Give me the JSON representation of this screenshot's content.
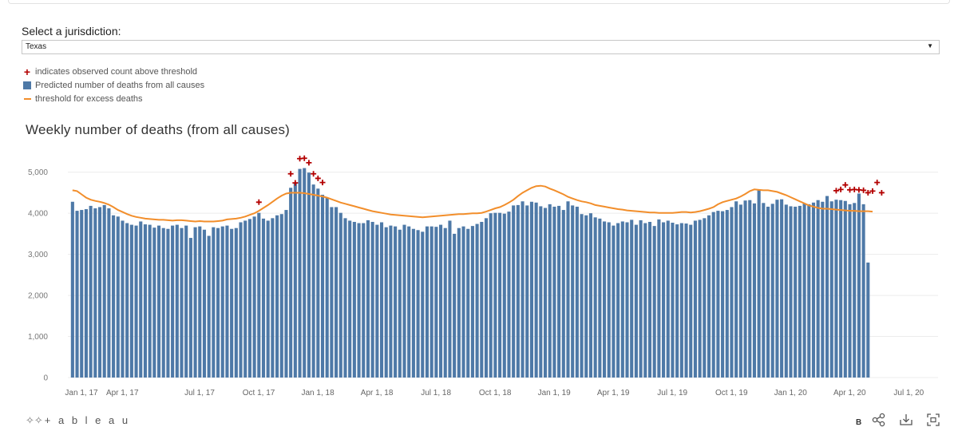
{
  "filter": {
    "label": "Select a jurisdiction:",
    "selected": "Texas",
    "caret_icon": "chevron-down-icon"
  },
  "legend": {
    "observed_above": "indicates observed count above threshold",
    "predicted": "Predicted number of deaths from all causes",
    "threshold": "threshold for excess deaths"
  },
  "footer": {
    "brand": "+ a b l e a u",
    "b_label": "B",
    "icons": [
      "share-icon",
      "download-icon",
      "fullscreen-icon"
    ]
  },
  "colors": {
    "bars": "#4e79a7",
    "threshold": "#f28e2b",
    "marker": "#b30000"
  },
  "chart_data": {
    "type": "bar",
    "title": "Weekly number of deaths (from all causes)",
    "xlabel": "",
    "ylabel": "",
    "ylim": [
      0,
      5500
    ],
    "yticks": [
      "0",
      "1,000",
      "2,000",
      "3,000",
      "4,000",
      "5,000"
    ],
    "ytick_values": [
      0,
      1000,
      2000,
      3000,
      4000,
      5000
    ],
    "x_start": "Jan 1, 17",
    "week_count": 183,
    "xticks": [
      {
        "label": "Jan 1, 17",
        "week": 0
      },
      {
        "label": "Apr 1, 17",
        "week": 9
      },
      {
        "label": "Jul 1, 17",
        "week": 26
      },
      {
        "label": "Oct 1, 17",
        "week": 39
      },
      {
        "label": "Jan 1, 18",
        "week": 52
      },
      {
        "label": "Apr 1, 18",
        "week": 65
      },
      {
        "label": "Jul 1, 18",
        "week": 78
      },
      {
        "label": "Oct 1, 18",
        "week": 91
      },
      {
        "label": "Jan 1, 19",
        "week": 104
      },
      {
        "label": "Apr 1, 19",
        "week": 117
      },
      {
        "label": "Jul 1, 19",
        "week": 130
      },
      {
        "label": "Oct 1, 19",
        "week": 143
      },
      {
        "label": "Jan 1, 20",
        "week": 156
      },
      {
        "label": "Apr 1, 20",
        "week": 169
      },
      {
        "label": "Jul 1, 20",
        "week": 182
      }
    ],
    "series": [
      {
        "name": "Predicted number of deaths from all causes",
        "type": "bar",
        "values": [
          4280,
          4060,
          4080,
          4100,
          4180,
          4120,
          4150,
          4200,
          4120,
          3950,
          3920,
          3820,
          3760,
          3720,
          3700,
          3800,
          3730,
          3720,
          3650,
          3700,
          3640,
          3620,
          3700,
          3720,
          3640,
          3700,
          3400,
          3660,
          3680,
          3600,
          3450,
          3660,
          3640,
          3680,
          3700,
          3620,
          3640,
          3780,
          3820,
          3860,
          3920,
          4010,
          3870,
          3820,
          3880,
          3950,
          3980,
          4080,
          4620,
          4740,
          5080,
          5100,
          4990,
          4700,
          4600,
          4450,
          4380,
          4150,
          4150,
          4010,
          3880,
          3820,
          3790,
          3760,
          3760,
          3830,
          3790,
          3720,
          3780,
          3660,
          3700,
          3680,
          3600,
          3720,
          3680,
          3620,
          3590,
          3550,
          3680,
          3680,
          3670,
          3720,
          3640,
          3820,
          3500,
          3640,
          3680,
          3620,
          3690,
          3740,
          3790,
          3880,
          4000,
          4010,
          4010,
          3990,
          4040,
          4190,
          4200,
          4290,
          4190,
          4280,
          4260,
          4170,
          4130,
          4220,
          4160,
          4180,
          4080,
          4290,
          4190,
          4160,
          3980,
          3950,
          4000,
          3900,
          3870,
          3800,
          3780,
          3700,
          3760,
          3800,
          3780,
          3840,
          3720,
          3830,
          3760,
          3790,
          3690,
          3850,
          3780,
          3820,
          3770,
          3730,
          3760,
          3750,
          3720,
          3820,
          3840,
          3880,
          3950,
          4030,
          4060,
          4050,
          4080,
          4150,
          4290,
          4210,
          4310,
          4320,
          4240,
          4580,
          4250,
          4160,
          4230,
          4330,
          4340,
          4210,
          4170,
          4160,
          4180,
          4240,
          4220,
          4260,
          4320,
          4280,
          4420,
          4290,
          4330,
          4320,
          4300,
          4220,
          4250,
          4480,
          4220,
          2800
        ]
      },
      {
        "name": "threshold for excess deaths",
        "type": "line",
        "values": [
          4560,
          4540,
          4460,
          4380,
          4330,
          4300,
          4280,
          4250,
          4210,
          4150,
          4080,
          4030,
          3980,
          3940,
          3910,
          3890,
          3870,
          3860,
          3850,
          3840,
          3840,
          3830,
          3820,
          3830,
          3830,
          3820,
          3810,
          3800,
          3810,
          3800,
          3800,
          3800,
          3810,
          3820,
          3850,
          3860,
          3870,
          3890,
          3920,
          3960,
          4000,
          4060,
          4130,
          4200,
          4280,
          4360,
          4430,
          4480,
          4500,
          4500,
          4500,
          4490,
          4470,
          4450,
          4430,
          4410,
          4380,
          4340,
          4300,
          4260,
          4230,
          4200,
          4170,
          4140,
          4110,
          4080,
          4050,
          4030,
          4010,
          3990,
          3970,
          3960,
          3950,
          3940,
          3930,
          3920,
          3910,
          3900,
          3910,
          3920,
          3930,
          3940,
          3950,
          3960,
          3970,
          3980,
          3980,
          3990,
          4000,
          4000,
          4010,
          4040,
          4080,
          4120,
          4150,
          4200,
          4260,
          4330,
          4420,
          4500,
          4560,
          4620,
          4660,
          4670,
          4650,
          4600,
          4560,
          4510,
          4460,
          4400,
          4360,
          4320,
          4290,
          4270,
          4240,
          4200,
          4180,
          4160,
          4140,
          4120,
          4100,
          4090,
          4070,
          4060,
          4050,
          4040,
          4030,
          4020,
          4020,
          4010,
          4010,
          4010,
          4010,
          4020,
          4030,
          4030,
          4020,
          4030,
          4050,
          4080,
          4110,
          4150,
          4220,
          4270,
          4300,
          4330,
          4360,
          4410,
          4470,
          4540,
          4580,
          4570,
          4560,
          4560,
          4540,
          4520,
          4480,
          4440,
          4390,
          4340,
          4290,
          4240,
          4190,
          4160,
          4130,
          4110,
          4110,
          4100,
          4090,
          4080,
          4070,
          4060,
          4060,
          4050,
          4050,
          4050,
          4040,
          null
        ]
      },
      {
        "name": "indicates observed count above threshold",
        "type": "scatter",
        "points": [
          {
            "week": 41,
            "value": 4270
          },
          {
            "week": 48,
            "value": 4960
          },
          {
            "week": 49,
            "value": 4740
          },
          {
            "week": 50,
            "value": 5330
          },
          {
            "week": 51,
            "value": 5340
          },
          {
            "week": 52,
            "value": 5230
          },
          {
            "week": 53,
            "value": 4960
          },
          {
            "week": 54,
            "value": 4850
          },
          {
            "week": 55,
            "value": 4750
          },
          {
            "week": 168,
            "value": 4550
          },
          {
            "week": 169,
            "value": 4580
          },
          {
            "week": 170,
            "value": 4690
          },
          {
            "week": 171,
            "value": 4570
          },
          {
            "week": 172,
            "value": 4580
          },
          {
            "week": 173,
            "value": 4570
          },
          {
            "week": 174,
            "value": 4560
          },
          {
            "week": 175,
            "value": 4500
          },
          {
            "week": 176,
            "value": 4540
          },
          {
            "week": 177,
            "value": 4750
          },
          {
            "week": 178,
            "value": 4500
          }
        ]
      }
    ]
  }
}
